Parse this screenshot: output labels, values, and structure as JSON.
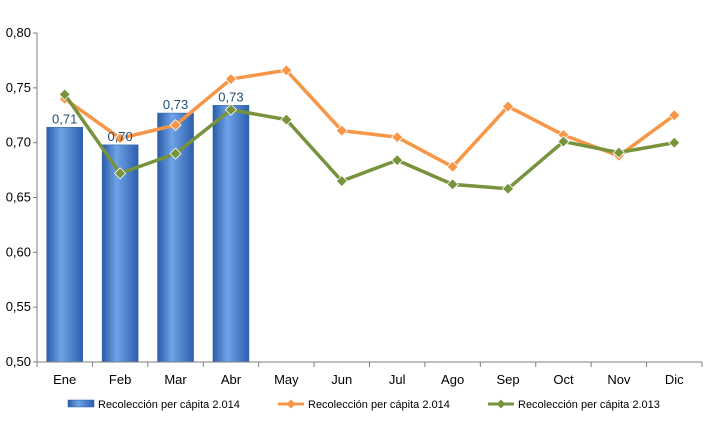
{
  "chart_data": {
    "type": "bar",
    "categories": [
      "Ene",
      "Feb",
      "Mar",
      "Abr",
      "May",
      "Jun",
      "Jul",
      "Ago",
      "Sep",
      "Oct",
      "Nov",
      "Dic"
    ],
    "ylim": [
      0.5,
      0.8
    ],
    "yticks": [
      "0,50",
      "0,55",
      "0,60",
      "0,65",
      "0,70",
      "0,75",
      "0,80"
    ],
    "grid": false,
    "legend_position": "bottom",
    "series": [
      {
        "name": "Recolección per cápita 2.014",
        "type": "bar",
        "color": "#4a86d4",
        "values": [
          0.714,
          0.698,
          0.727,
          0.734,
          null,
          null,
          null,
          null,
          null,
          null,
          null,
          null
        ],
        "labels": [
          "0,71",
          "0,70",
          "0,73",
          "0,73"
        ]
      },
      {
        "name": "Recolección per cápita 2.014",
        "type": "line",
        "color": "#f79646",
        "values": [
          0.74,
          0.704,
          0.716,
          0.758,
          0.766,
          0.711,
          0.705,
          0.678,
          0.733,
          0.707,
          0.688,
          0.725
        ]
      },
      {
        "name": "Recolección per cápita 2.013",
        "type": "line",
        "color": "#77933c",
        "values": [
          0.744,
          0.672,
          0.69,
          0.73,
          0.721,
          0.665,
          0.684,
          0.662,
          0.658,
          0.701,
          0.691,
          0.7
        ]
      }
    ]
  }
}
